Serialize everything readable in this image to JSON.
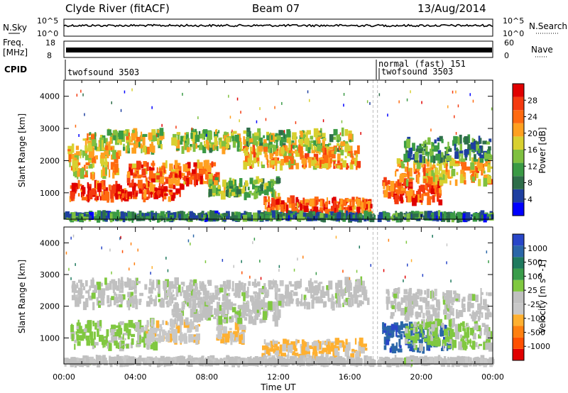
{
  "header": {
    "station": "Clyde River (fitACF)",
    "beam": "Beam 07",
    "date": "13/Aug/2014"
  },
  "top_panels": {
    "nsky_label": "N.Sky",
    "nsearch_label": "N.Search",
    "nsky_ticks": [
      "10^5",
      "10^0"
    ],
    "nsearch_ticks": [
      "10^5",
      "10^0"
    ],
    "freq_label_1": "Freq.",
    "freq_label_2": "[MHz]",
    "freq_ticks": [
      "18",
      "8"
    ],
    "nave_label": "Nave",
    "nave_ticks": [
      "60",
      "0"
    ],
    "cpid_label": "CPID",
    "cpid_segments": [
      {
        "text": "twofsound 3503",
        "start_hour": 0.0
      },
      {
        "text": "normal (fast) 151",
        "start_hour": 17.45
      },
      {
        "text": "twofsound 3503",
        "start_hour": 17.6
      }
    ],
    "gap_hours": [
      17.3,
      17.55
    ]
  },
  "colors": {
    "power_scale": [
      "#0000ff",
      "#1e3fa0",
      "#2e6e4a",
      "#3a9a45",
      "#7fc040",
      "#d8d030",
      "#ffa020",
      "#ff6a10",
      "#f43a10",
      "#e00000"
    ],
    "velocity_scale": [
      "#2846c8",
      "#2a66a8",
      "#1f7a5e",
      "#3a9c4a",
      "#80c840",
      "#c0c0c0",
      "#c8c8c8",
      "#ffb030",
      "#ff8010",
      "#ff5000",
      "#e00000"
    ]
  },
  "chart_data": [
    {
      "type": "heatmap",
      "name": "power",
      "ylabel": "Slant Range [km]",
      "xlim_hours": [
        0,
        24
      ],
      "ylim_km": [
        180,
        4500
      ],
      "yticks": [
        "1000",
        "2000",
        "3000",
        "4000"
      ],
      "colorbar_label": "Power [dB]",
      "colorbar_ticks": [
        "4",
        "8",
        "12",
        "16",
        "20",
        "24",
        "28"
      ],
      "value_range": [
        0,
        32
      ],
      "blobs": [
        {
          "t": [
            0.3,
            6.5
          ],
          "r": [
            800,
            1300
          ],
          "v": 27
        },
        {
          "t": [
            0.2,
            3.0
          ],
          "r": [
            1500,
            2400
          ],
          "v": 19
        },
        {
          "t": [
            1.0,
            5.5
          ],
          "r": [
            2300,
            2900
          ],
          "v": 17
        },
        {
          "t": [
            3.5,
            8.5
          ],
          "r": [
            1300,
            1900
          ],
          "v": 24
        },
        {
          "t": [
            6.0,
            16.0
          ],
          "r": [
            2300,
            2900
          ],
          "v": 15
        },
        {
          "t": [
            10.0,
            16.5
          ],
          "r": [
            1800,
            2400
          ],
          "v": 21
        },
        {
          "t": [
            11.0,
            17.2
          ],
          "r": [
            350,
            800
          ],
          "v": 25
        },
        {
          "t": [
            8.0,
            12.0
          ],
          "r": [
            900,
            1400
          ],
          "v": 14
        },
        {
          "t": [
            17.8,
            21.0
          ],
          "r": [
            700,
            1400
          ],
          "v": 26
        },
        {
          "t": [
            18.5,
            23.8
          ],
          "r": [
            1300,
            2000
          ],
          "v": 20
        },
        {
          "t": [
            19.0,
            23.8
          ],
          "r": [
            2000,
            2700
          ],
          "v": 10
        },
        {
          "t": [
            0.0,
            24.0
          ],
          "r": [
            200,
            330
          ],
          "v": 9
        }
      ]
    },
    {
      "type": "heatmap",
      "name": "velocity",
      "ylabel": "Slant Range [km]",
      "xlabel": "Time UT",
      "xlim_hours": [
        0,
        24
      ],
      "ylim_km": [
        180,
        4500
      ],
      "yticks": [
        "1000",
        "2000",
        "3000",
        "4000"
      ],
      "xticks": [
        "00:00",
        "04:00",
        "08:00",
        "12:00",
        "16:00",
        "20:00",
        "00:00"
      ],
      "colorbar_label": "Velocity [m s^-1]",
      "colorbar_ticks": [
        "1000",
        "500",
        "100",
        "25",
        "-25",
        "-100",
        "-500",
        "-1000"
      ],
      "value_range": [
        -1200,
        1200
      ],
      "blobs": [
        {
          "t": [
            0.3,
            5.0
          ],
          "r": [
            700,
            1500
          ],
          "v": 150
        },
        {
          "t": [
            0.2,
            17.0
          ],
          "r": [
            2000,
            2800
          ],
          "v": 0
        },
        {
          "t": [
            4.5,
            7.5
          ],
          "r": [
            900,
            1500
          ],
          "v": -250
        },
        {
          "t": [
            8.5,
            10.0
          ],
          "r": [
            900,
            1400
          ],
          "v": -300
        },
        {
          "t": [
            11.0,
            16.8
          ],
          "r": [
            400,
            900
          ],
          "v": -350
        },
        {
          "t": [
            6.0,
            12.0
          ],
          "r": [
            1500,
            2100
          ],
          "v": 10
        },
        {
          "t": [
            17.8,
            21.5
          ],
          "r": [
            600,
            1400
          ],
          "v": 900
        },
        {
          "t": [
            19.0,
            23.8
          ],
          "r": [
            700,
            1500
          ],
          "v": 160
        },
        {
          "t": [
            18.0,
            23.8
          ],
          "r": [
            1600,
            2500
          ],
          "v": 0
        },
        {
          "t": [
            0.0,
            24.0
          ],
          "r": [
            200,
            330
          ],
          "v": -20
        }
      ]
    }
  ]
}
